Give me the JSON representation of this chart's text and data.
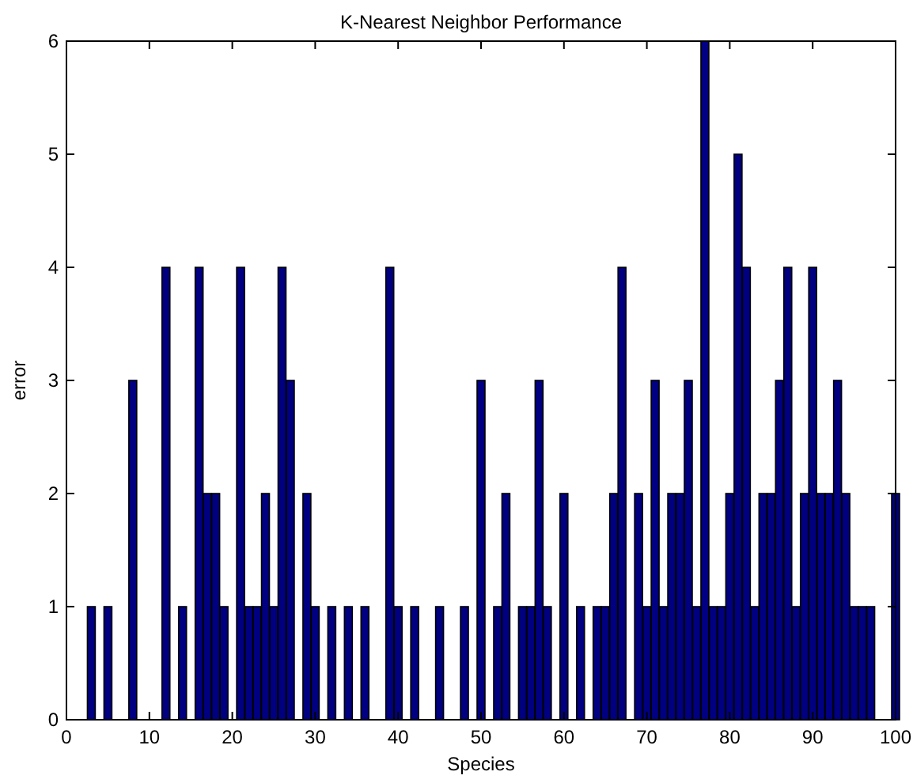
{
  "chart_data": {
    "type": "bar",
    "title": "K-Nearest Neighbor Performance",
    "xlabel": "Species",
    "ylabel": "error",
    "x": [
      1,
      2,
      3,
      4,
      5,
      6,
      7,
      8,
      9,
      10,
      11,
      12,
      13,
      14,
      15,
      16,
      17,
      18,
      19,
      20,
      21,
      22,
      23,
      24,
      25,
      26,
      27,
      28,
      29,
      30,
      31,
      32,
      33,
      34,
      35,
      36,
      37,
      38,
      39,
      40,
      41,
      42,
      43,
      44,
      45,
      46,
      47,
      48,
      49,
      50,
      51,
      52,
      53,
      54,
      55,
      56,
      57,
      58,
      59,
      60,
      61,
      62,
      63,
      64,
      65,
      66,
      67,
      68,
      69,
      70,
      71,
      72,
      73,
      74,
      75,
      76,
      77,
      78,
      79,
      80,
      81,
      82,
      83,
      84,
      85,
      86,
      87,
      88,
      89,
      90,
      91,
      92,
      93,
      94,
      95,
      96,
      97,
      98,
      99,
      100
    ],
    "values": [
      0,
      0,
      1,
      0,
      1,
      0,
      0,
      3,
      0,
      0,
      0,
      4,
      0,
      1,
      0,
      4,
      2,
      2,
      1,
      0,
      4,
      1,
      1,
      2,
      1,
      4,
      3,
      0,
      2,
      1,
      0,
      1,
      0,
      1,
      0,
      1,
      0,
      0,
      4,
      1,
      0,
      1,
      0,
      0,
      1,
      0,
      0,
      1,
      0,
      3,
      0,
      1,
      2,
      0,
      1,
      1,
      3,
      1,
      0,
      2,
      0,
      1,
      0,
      1,
      1,
      2,
      4,
      0,
      2,
      1,
      3,
      1,
      2,
      2,
      3,
      1,
      6,
      1,
      1,
      2,
      5,
      4,
      1,
      2,
      2,
      3,
      4,
      1,
      2,
      4,
      2,
      2,
      3,
      2,
      1,
      1,
      1,
      0,
      0,
      2
    ],
    "color": "#000080",
    "xlim": [
      0,
      100
    ],
    "xticks": [
      0,
      10,
      20,
      30,
      40,
      50,
      60,
      70,
      80,
      90,
      100
    ],
    "ylim": [
      0,
      6
    ],
    "yticks": [
      0,
      1,
      2,
      3,
      4,
      5,
      6
    ],
    "grid": false
  }
}
